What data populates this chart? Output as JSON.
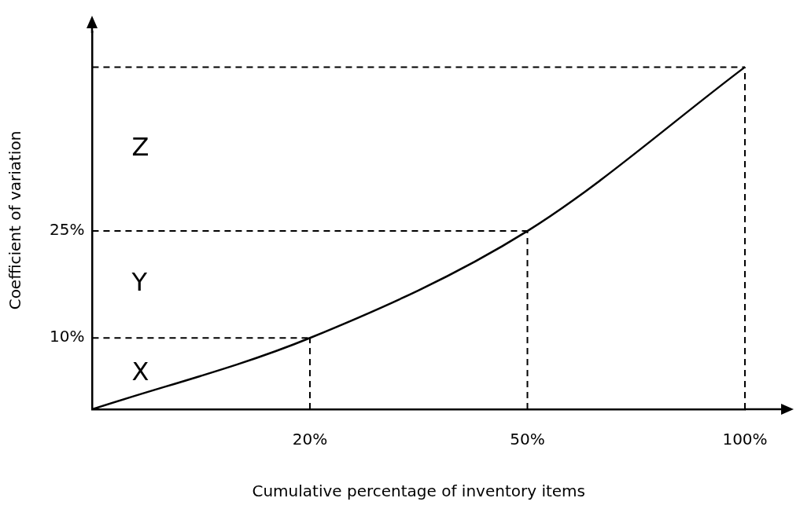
{
  "chart_data": {
    "type": "line",
    "xlabel": "Cumulative percentage of inventory items",
    "ylabel": "Coefficient of variation",
    "categories": [
      null,
      "20%",
      "50%",
      "100%"
    ],
    "series": [
      {
        "color": "#000000",
        "values": [
          0,
          10,
          25,
          48
        ]
      }
    ],
    "ylim": [
      0,
      53
    ],
    "yticks": [
      {
        "value": 10,
        "label": "10%"
      },
      {
        "value": 25,
        "label": "25%"
      }
    ],
    "grid": false,
    "legend": false,
    "marker": "none",
    "line_style": "solid",
    "ref_lines": [
      {
        "axis": "y",
        "value": 10,
        "line_style": "dashed"
      },
      {
        "axis": "y",
        "value": 25,
        "line_style": "dashed"
      },
      {
        "axis": "y",
        "value": 48,
        "line_style": "dashed"
      },
      {
        "axis": "x",
        "value": "20%",
        "line_style": "dashed"
      },
      {
        "axis": "x",
        "value": "50%",
        "line_style": "dashed"
      },
      {
        "axis": "x",
        "value": "100%",
        "line_style": "dashed"
      }
    ],
    "annotations": [
      "X",
      "Y",
      "Z"
    ]
  }
}
